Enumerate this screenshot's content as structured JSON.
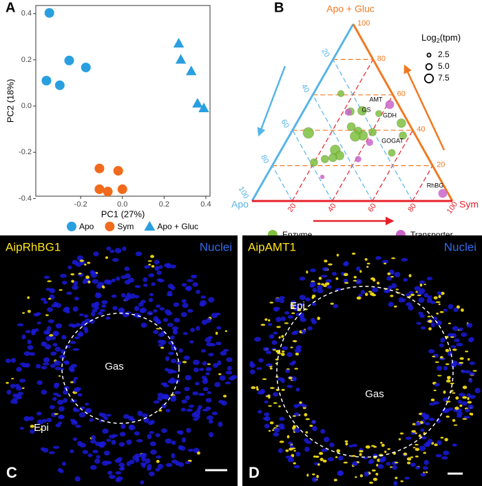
{
  "chart_data": [
    {
      "type": "scatter",
      "label": "A",
      "x_label": "PC1 (27%)",
      "y_label": "PC2 (18%)",
      "xlim": [
        -0.415,
        0.42
      ],
      "ylim": [
        -0.39,
        0.435
      ],
      "xticks": [
        -0.2,
        {
          "value": 0,
          "label": "0.0"
        },
        0.2,
        0.4
      ],
      "yticks": [
        -0.4,
        -0.2,
        {
          "value": 0,
          "label": "0.0"
        },
        0.2,
        0.4
      ],
      "series": [
        {
          "name": "Apo",
          "color": "#2a9fe0",
          "marker": "circle",
          "x": [
            -0.35,
            -0.255,
            -0.175,
            -0.364,
            -0.3
          ],
          "y": [
            0.403,
            0.197,
            0.167,
            0.11,
            0.09
          ]
        },
        {
          "name": "Sym",
          "color": "#f26a1b",
          "marker": "circle",
          "x": [
            -0.11,
            -0.02,
            -0.11,
            -0.07,
            0.0
          ],
          "y": [
            -0.27,
            -0.28,
            -0.36,
            -0.37,
            -0.36
          ]
        },
        {
          "name": "Apo + Gluc",
          "color": "#2a9fe0",
          "marker": "triangle",
          "x": [
            0.27,
            0.28,
            0.33,
            0.36,
            0.39
          ],
          "y": [
            0.27,
            0.2,
            0.15,
            0.01,
            -0.01
          ]
        }
      ]
    },
    {
      "type": "ternary",
      "label": "B",
      "top_axis": {
        "title": "Apo + Gluc",
        "color": "#f07820",
        "ticks": [
          20,
          40,
          60,
          80,
          100
        ]
      },
      "left_axis": {
        "title": "Apo",
        "color": "#56b4e9",
        "ticks": [
          20,
          40,
          60,
          80,
          100
        ]
      },
      "right_axis": {
        "title": "Sym",
        "color": "#e8202a",
        "ticks": [
          20,
          40,
          60,
          80,
          100
        ]
      },
      "size_title": [
        "Log",
        "2",
        "(tpm)"
      ],
      "size_ticks": [
        2.5,
        {
          "value": 5,
          "label": "5.0"
        },
        7.5
      ],
      "annotations": [
        "AMT",
        "GS",
        "GDH",
        "GOGAT",
        "RhBG"
      ],
      "series": [
        {
          "name": "Enzyme",
          "color": "#7fbf3f",
          "sym": [
            8.7,
            19.9,
            24.4,
            27,
            30.7,
            28,
            13.7,
            23.6,
            28.3,
            36.6,
            32.9,
            40.5,
            29.2,
            38.3,
            52.3,
            56.6,
            56,
            33
          ],
          "gluc": [
            38.5,
            21.8,
            23.7,
            28.8,
            25.7,
            24.5,
            60.7,
            50.6,
            42,
            37,
            39.7,
            38.9,
            51,
            49.4,
            44,
            37,
            27.2,
            36.6
          ],
          "size": [
            7.5,
            5,
            5,
            7,
            6,
            5.5,
            4,
            5,
            5.5,
            6.5,
            5,
            5,
            6,
            4,
            6,
            5,
            4.5,
            7
          ]
        },
        {
          "name": "Transporter",
          "color": "#c965c9",
          "sym": [
            41.2,
            42,
            41,
            22.7,
            28.2,
            93
          ],
          "gluc": [
            54.5,
            33.1,
            23.7,
            50.2,
            13.6,
            4.3
          ],
          "size": [
            6,
            4.5,
            4,
            4.5,
            2.5,
            6
          ]
        }
      ]
    }
  ],
  "panels": [
    {
      "label": "C",
      "stain": "AipRhBG1",
      "nuclei": "Nuclei",
      "regions": [
        "Gas",
        "Epi"
      ]
    },
    {
      "label": "D",
      "stain": "AipAMT1",
      "nuclei": "Nuclei",
      "regions": [
        "Epi",
        "Gas"
      ]
    }
  ]
}
